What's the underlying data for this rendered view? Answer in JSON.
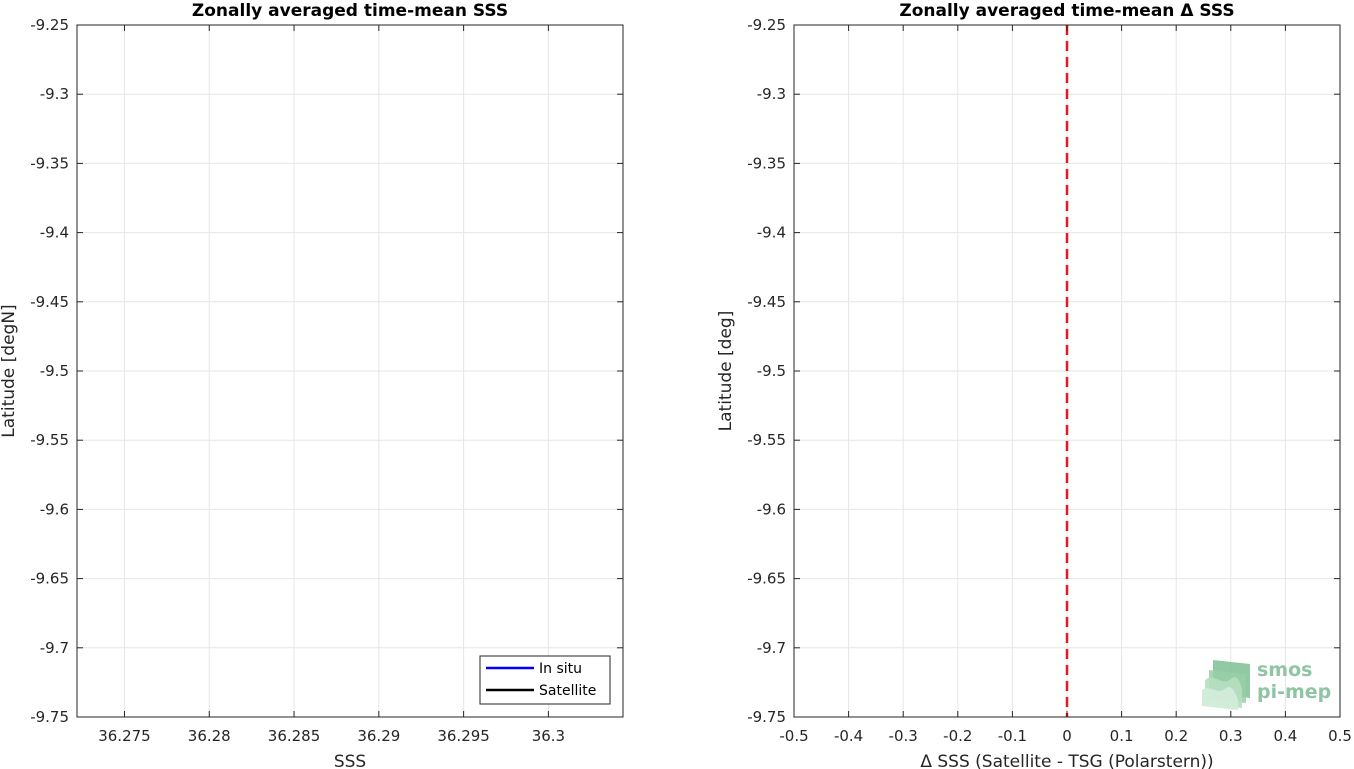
{
  "chart_data": [
    {
      "type": "line",
      "title": "Zonally averaged time-mean SSS",
      "xlabel": "SSS",
      "ylabel": "Latitude [degN]",
      "xlim": [
        36.2722,
        36.3044
      ],
      "ylim": [
        -9.75,
        -9.25
      ],
      "xticks": [
        "36.275",
        "36.28",
        "36.285",
        "36.29",
        "36.295",
        "36.3"
      ],
      "yticks": [
        "-9.25",
        "-9.3",
        "-9.35",
        "-9.4",
        "-9.45",
        "-9.5",
        "-9.55",
        "-9.6",
        "-9.65",
        "-9.7",
        "-9.75"
      ],
      "grid": true,
      "legend_position": "bottom-right",
      "series": [
        {
          "name": "In situ",
          "color": "#0000ff",
          "x": [],
          "y": []
        },
        {
          "name": "Satellite",
          "color": "#000000",
          "x": [],
          "y": []
        }
      ]
    },
    {
      "type": "line",
      "title": "Zonally averaged time-mean Δ SSS",
      "xlabel": "Δ SSS (Satellite - TSG (Polarstern))",
      "ylabel": "Latitude [deg]",
      "xlim": [
        -0.5,
        0.5
      ],
      "ylim": [
        -9.75,
        -9.25
      ],
      "xticks": [
        "-0.5",
        "-0.4",
        "-0.3",
        "-0.2",
        "-0.1",
        "0",
        "0.1",
        "0.2",
        "0.3",
        "0.4",
        "0.5"
      ],
      "yticks": [
        "-9.25",
        "-9.3",
        "-9.35",
        "-9.4",
        "-9.45",
        "-9.5",
        "-9.55",
        "-9.6",
        "-9.65",
        "-9.7",
        "-9.75"
      ],
      "grid": true,
      "reference_line": {
        "x": 0,
        "color": "#e41a1c",
        "style": "dashed"
      },
      "series": []
    }
  ],
  "logo": {
    "line1": "smos",
    "line2": "pi-mep"
  }
}
